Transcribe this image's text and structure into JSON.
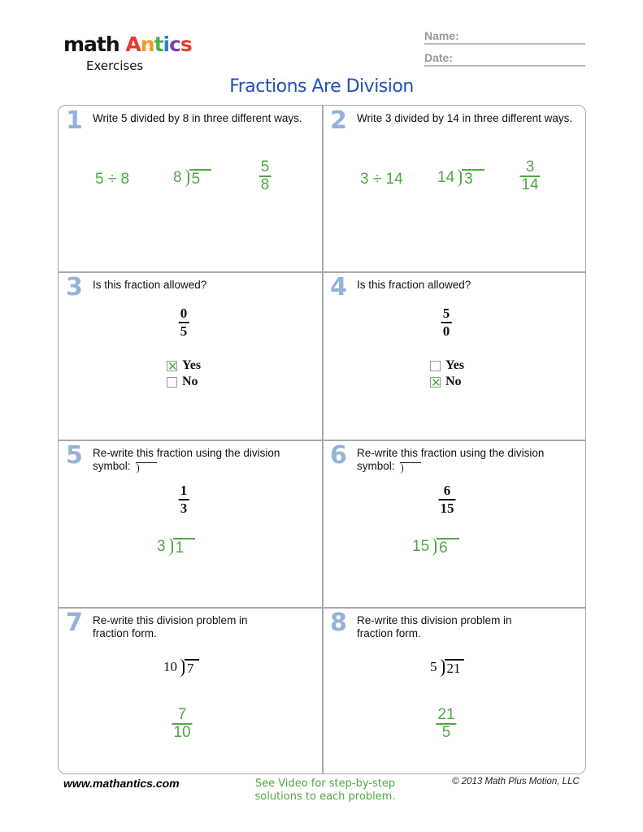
{
  "header": {
    "logo_word1": "math",
    "logo_word2": "Antics",
    "logo_colors": [
      "#e53a2b",
      "#f39a1e",
      "#4caf50",
      "#2d7fd1",
      "#7b3fb0"
    ],
    "logo_sub": "Exercises",
    "name_label": "Name:",
    "date_label": "Date:",
    "title": "Fractions Are Division",
    "title_color": "#1f4fc1"
  },
  "colors": {
    "answer": "#4fa843",
    "problem_number": "#93b3d8"
  },
  "problems": [
    {
      "n": "1",
      "q": "Write 5 divided by 8 in three different ways.",
      "a_div": "5 ÷ 8",
      "a_ld_divisor": "8",
      "a_ld_dividend": "5",
      "a_num": "5",
      "a_den": "8"
    },
    {
      "n": "2",
      "q": "Write 3 divided by 14 in three different ways.",
      "a_div": "3 ÷ 14",
      "a_ld_divisor": "14",
      "a_ld_dividend": "3",
      "a_num": "3",
      "a_den": "14"
    },
    {
      "n": "3",
      "q": "Is this fraction allowed?",
      "num": "0",
      "den": "5",
      "yes": "Yes",
      "no": "No",
      "checked": "Yes"
    },
    {
      "n": "4",
      "q": "Is this fraction allowed?",
      "num": "5",
      "den": "0",
      "yes": "Yes",
      "no": "No",
      "checked": "No"
    },
    {
      "n": "5",
      "q": "Re-write this fraction using the division symbol:",
      "num": "1",
      "den": "3",
      "a_ld_divisor": "3",
      "a_ld_dividend": "1"
    },
    {
      "n": "6",
      "q": "Re-write this fraction using the division symbol:",
      "num": "6",
      "den": "15",
      "a_ld_divisor": "15",
      "a_ld_dividend": "6"
    },
    {
      "n": "7",
      "q": "Re-write this division problem in fraction form.",
      "ld_divisor": "10",
      "ld_dividend": "7",
      "a_num": "7",
      "a_den": "10"
    },
    {
      "n": "8",
      "q": "Re-write this division problem in fraction form.",
      "ld_divisor": "5",
      "ld_dividend": "21",
      "a_num": "21",
      "a_den": "5"
    }
  ],
  "footer": {
    "website": "www.mathantics.com",
    "video_note": "See Video for step-by-step solutions to each problem.",
    "copyright": "© 2013 Math Plus Motion, LLC"
  }
}
